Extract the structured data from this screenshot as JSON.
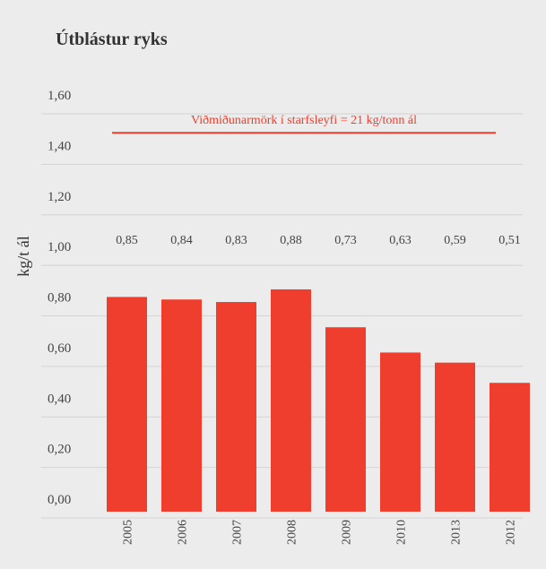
{
  "chart_data": {
    "type": "bar",
    "title": "Útblástur ryks",
    "y_label": "kg/t ál",
    "categories": [
      "2005",
      "2006",
      "2007",
      "2008",
      "2009",
      "2010",
      "2013",
      "2012"
    ],
    "values": [
      0.85,
      0.84,
      0.83,
      0.88,
      0.73,
      0.63,
      0.59,
      0.51
    ],
    "value_labels": [
      "0,85",
      "0,84",
      "0,83",
      "0,88",
      "0,73",
      "0,63",
      "0,59",
      "0,51"
    ],
    "color": "#ef3e2d",
    "ylim": [
      0,
      1.6
    ],
    "yticks": [
      {
        "value": 0,
        "label": "0,00"
      },
      {
        "value": 0.2,
        "label": "0,20"
      },
      {
        "value": 0.4,
        "label": "0,40"
      },
      {
        "value": 0.6,
        "label": "0,60"
      },
      {
        "value": 0.8,
        "label": "0,80"
      },
      {
        "value": 1.0,
        "label": "1,00"
      },
      {
        "value": 1.2,
        "label": "1,20"
      },
      {
        "value": 1.4,
        "label": "1,40"
      },
      {
        "value": 1.6,
        "label": "1,60"
      }
    ],
    "grid": true,
    "reference_line": {
      "value": 1.5,
      "label": "Viðmiðunarmörk í starfsleyfi = 21 kg/tonn ál",
      "color": "#ef3e2d"
    }
  }
}
